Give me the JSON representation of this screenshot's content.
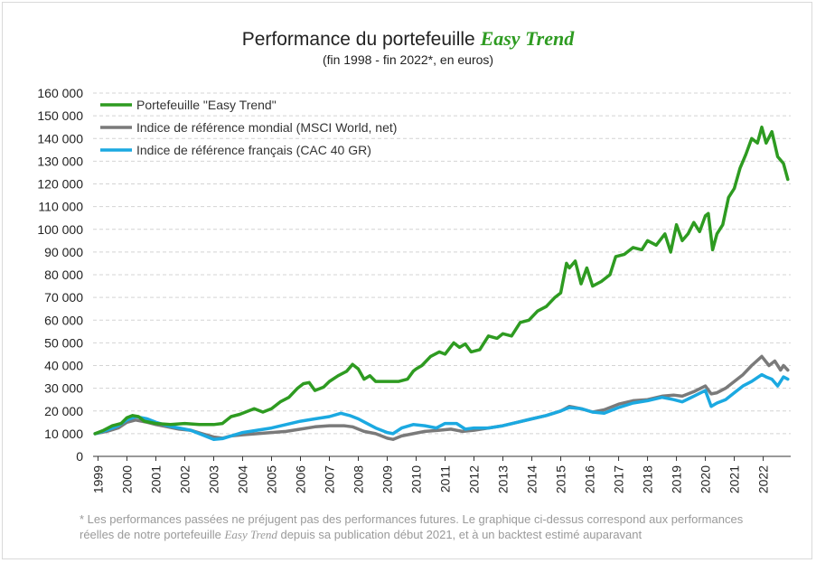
{
  "title": {
    "prefix": "Performance du portefeuille",
    "brand": "Easy Trend",
    "subtitle": "(fin 1998 - fin 2022*, en euros)"
  },
  "footnote": {
    "line1": "* Les performances passées ne préjugent pas des performances futures. Le graphique ci-dessus correspond aux performances",
    "line2_before": "réelles de notre portefeuille",
    "brand": "Easy Trend",
    "line2_after": "depuis sa publication début 2021, et à un backtest estimé auparavant"
  },
  "chart_data": {
    "type": "line",
    "title": "Performance du portefeuille Easy Trend",
    "subtitle": "(fin 1998 - fin 2022*, en euros)",
    "xlabel": "",
    "ylabel": "",
    "ylim": [
      0,
      160000
    ],
    "xlim": [
      1998.83,
      2022.95
    ],
    "grid": true,
    "legend_position": "top-left",
    "yticks": [
      0,
      10000,
      20000,
      30000,
      40000,
      50000,
      60000,
      70000,
      80000,
      90000,
      100000,
      110000,
      120000,
      130000,
      140000,
      150000,
      160000
    ],
    "ytick_labels": [
      "0",
      "10 000",
      "20 000",
      "30 000",
      "40 000",
      "50 000",
      "60 000",
      "70 000",
      "80 000",
      "90 000",
      "100 000",
      "110 000",
      "120 000",
      "130 000",
      "140 000",
      "150 000",
      "160 000"
    ],
    "xticks": [
      1999,
      2000,
      2001,
      2002,
      2003,
      2004,
      2005,
      2006,
      2007,
      2008,
      2009,
      2010,
      2011,
      2012,
      2013,
      2014,
      2015,
      2016,
      2017,
      2018,
      2019,
      2020,
      2021,
      2022
    ],
    "xtick_labels": [
      "1999",
      "2000",
      "2001",
      "2002",
      "2003",
      "2004",
      "2005",
      "2006",
      "2007",
      "2008",
      "2009",
      "2010",
      "2011",
      "2012",
      "2013",
      "2014",
      "2015",
      "2016",
      "2017",
      "2018",
      "2019",
      "2020",
      "2021",
      "2022"
    ],
    "series": [
      {
        "name": "Portefeuille \"Easy Trend\"",
        "color": "#2e9b21",
        "x": [
          1998.9,
          1999.2,
          1999.5,
          1999.8,
          2000.0,
          2000.2,
          2000.4,
          2000.6,
          2001.0,
          2001.5,
          2002.0,
          2002.5,
          2003.0,
          2003.3,
          2003.6,
          2003.9,
          2004.2,
          2004.4,
          2004.7,
          2005.0,
          2005.3,
          2005.6,
          2005.9,
          2006.1,
          2006.3,
          2006.5,
          2006.8,
          2007.0,
          2007.3,
          2007.6,
          2007.8,
          2008.0,
          2008.2,
          2008.4,
          2008.6,
          2009.0,
          2009.4,
          2009.7,
          2009.9,
          2010.0,
          2010.2,
          2010.5,
          2010.8,
          2011.0,
          2011.3,
          2011.5,
          2011.7,
          2011.9,
          2012.2,
          2012.5,
          2012.8,
          2013.0,
          2013.3,
          2013.6,
          2013.9,
          2014.2,
          2014.5,
          2014.8,
          2015.0,
          2015.2,
          2015.3,
          2015.5,
          2015.7,
          2015.9,
          2016.1,
          2016.4,
          2016.7,
          2016.9,
          2017.2,
          2017.5,
          2017.8,
          2018.0,
          2018.3,
          2018.6,
          2018.8,
          2019.0,
          2019.2,
          2019.4,
          2019.6,
          2019.8,
          2020.0,
          2020.1,
          2020.25,
          2020.4,
          2020.6,
          2020.8,
          2021.0,
          2021.2,
          2021.4,
          2021.6,
          2021.8,
          2021.95,
          2022.1,
          2022.3,
          2022.5,
          2022.7,
          2022.85
        ],
        "values": [
          10000,
          11500,
          13500,
          14500,
          17000,
          18000,
          17500,
          15500,
          14500,
          14000,
          14500,
          14000,
          14000,
          14500,
          17500,
          18500,
          20000,
          21000,
          19500,
          21000,
          24000,
          26000,
          30000,
          32000,
          32500,
          29000,
          30500,
          33000,
          35500,
          37500,
          40500,
          38500,
          34000,
          35500,
          33000,
          33000,
          33000,
          34000,
          37500,
          38500,
          40000,
          44000,
          46000,
          45000,
          50000,
          48000,
          49500,
          46000,
          47000,
          53000,
          52000,
          54000,
          53000,
          59000,
          60000,
          64000,
          66000,
          70000,
          72000,
          85000,
          83000,
          86000,
          76000,
          83000,
          75000,
          77000,
          80000,
          88000,
          89000,
          92000,
          91000,
          95000,
          93000,
          98000,
          90000,
          102000,
          95000,
          98000,
          103000,
          99000,
          106000,
          107000,
          91000,
          98000,
          102000,
          114000,
          118000,
          127000,
          133000,
          140000,
          138000,
          145000,
          138000,
          143000,
          132000,
          129000,
          122000
        ]
      },
      {
        "name": "Indice de référence mondial (MSCI World, net)",
        "color": "#7a7a7a",
        "x": [
          1998.9,
          1999.3,
          1999.7,
          2000.0,
          2000.3,
          2000.7,
          2001.0,
          2001.4,
          2001.8,
          2002.2,
          2002.6,
          2003.0,
          2003.3,
          2003.6,
          2004.0,
          2004.5,
          2005.0,
          2005.5,
          2006.0,
          2006.5,
          2007.0,
          2007.5,
          2007.8,
          2008.2,
          2008.6,
          2009.0,
          2009.2,
          2009.5,
          2009.9,
          2010.3,
          2010.8,
          2011.2,
          2011.6,
          2012.0,
          2012.5,
          2013.0,
          2013.5,
          2014.0,
          2014.5,
          2015.0,
          2015.3,
          2015.7,
          2016.1,
          2016.5,
          2017.0,
          2017.5,
          2018.0,
          2018.5,
          2018.9,
          2019.2,
          2019.6,
          2020.0,
          2020.2,
          2020.4,
          2020.7,
          2021.0,
          2021.3,
          2021.6,
          2021.95,
          2022.2,
          2022.4,
          2022.6,
          2022.7,
          2022.85
        ],
        "values": [
          10000,
          11000,
          12500,
          15000,
          16000,
          15000,
          14000,
          13000,
          12000,
          11500,
          10000,
          8500,
          8000,
          9000,
          9500,
          10000,
          10500,
          11000,
          12000,
          13000,
          13500,
          13500,
          13000,
          11000,
          10000,
          8000,
          7500,
          9000,
          10000,
          11000,
          11500,
          12000,
          11000,
          11500,
          12500,
          13500,
          15000,
          16500,
          18000,
          20000,
          22000,
          21000,
          19500,
          20500,
          23000,
          24500,
          25000,
          26500,
          27000,
          26500,
          28500,
          31000,
          27500,
          28000,
          30000,
          33000,
          36000,
          40000,
          44000,
          40000,
          42000,
          38000,
          40000,
          38000
        ]
      },
      {
        "name": "Indice de référence français (CAC 40 GR)",
        "color": "#1ba9e1",
        "x": [
          1998.9,
          1999.3,
          1999.7,
          2000.0,
          2000.3,
          2000.7,
          2001.0,
          2001.4,
          2001.8,
          2002.2,
          2002.6,
          2003.0,
          2003.3,
          2003.6,
          2004.0,
          2004.5,
          2005.0,
          2005.5,
          2006.0,
          2006.5,
          2007.0,
          2007.4,
          2007.7,
          2008.0,
          2008.3,
          2008.6,
          2009.0,
          2009.2,
          2009.5,
          2009.9,
          2010.3,
          2010.7,
          2011.0,
          2011.4,
          2011.7,
          2012.0,
          2012.5,
          2013.0,
          2013.5,
          2014.0,
          2014.5,
          2015.0,
          2015.3,
          2015.7,
          2016.1,
          2016.5,
          2017.0,
          2017.5,
          2018.0,
          2018.5,
          2018.9,
          2019.2,
          2019.6,
          2020.0,
          2020.2,
          2020.4,
          2020.7,
          2021.0,
          2021.3,
          2021.6,
          2021.95,
          2022.1,
          2022.3,
          2022.5,
          2022.7,
          2022.85
        ],
        "values": [
          10000,
          11500,
          13500,
          16000,
          17500,
          16500,
          15000,
          13500,
          12500,
          11500,
          9500,
          7500,
          7800,
          9000,
          10500,
          11500,
          12500,
          14000,
          15500,
          16500,
          17500,
          19000,
          18000,
          16500,
          14500,
          12500,
          10500,
          10000,
          12500,
          14000,
          13500,
          12500,
          14500,
          14500,
          12000,
          12500,
          12500,
          13500,
          15000,
          16500,
          18000,
          20000,
          21500,
          21000,
          19500,
          19000,
          21500,
          23500,
          24500,
          26000,
          25000,
          24000,
          26500,
          29000,
          22000,
          23500,
          25000,
          28000,
          31000,
          33000,
          36000,
          35000,
          34000,
          31000,
          35000,
          34000
        ]
      }
    ]
  }
}
